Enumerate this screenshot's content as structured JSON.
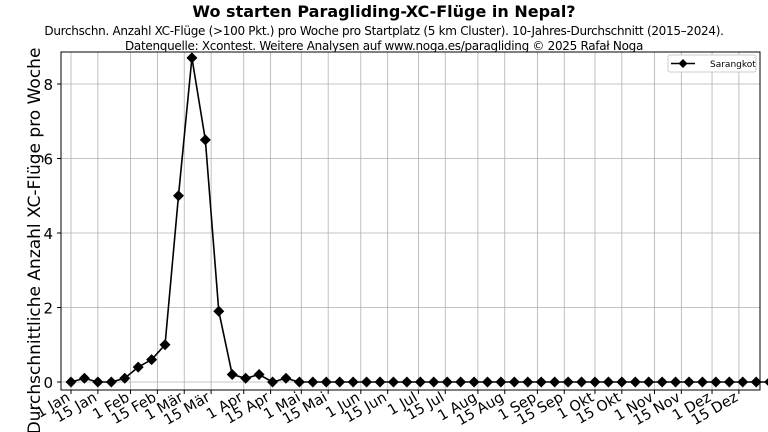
{
  "chart_data": {
    "type": "line",
    "title": "Wo starten Paragliding-XC-Flüge in Nepal?",
    "subtitle_line1": "Durchschn. Anzahl XC-Flüge (>100 Pkt.) pro Woche pro Startplatz (5 km Cluster). 10-Jahres-Durchschnitt (2015–2024).",
    "subtitle_line2": "Datenquelle: Xcontest. Weitere Analysen auf www.noga.es/paragliding © 2025 Rafał Noga",
    "xlabel": "",
    "ylabel": "Durchschnittliche Anzahl XC-Flüge pro Woche",
    "ylim": [
      0,
      8.9
    ],
    "yticks": [
      0,
      2,
      4,
      6,
      8
    ],
    "xtick_labels": [
      "1 Jan",
      "15 Jan",
      "1 Feb",
      "15 Feb",
      "1 Mär",
      "15 Mär",
      "1 Apr",
      "15 Apr",
      "1 Mai",
      "15 Mai",
      "1 Jun",
      "15 Jun",
      "1 Jul",
      "15 Jul",
      "1 Aug",
      "15 Aug",
      "1 Sep",
      "15 Sep",
      "1 Okt",
      "15 Okt",
      "1 Nov",
      "15 Nov",
      "1 Dez",
      "15 Dez"
    ],
    "xtick_days": [
      0,
      14,
      31,
      45,
      59,
      73,
      90,
      104,
      120,
      134,
      151,
      165,
      181,
      195,
      212,
      226,
      243,
      257,
      273,
      287,
      304,
      318,
      334,
      348
    ],
    "grid": true,
    "legend_position": "upper right",
    "series": [
      {
        "name": "Sarangkot",
        "marker": "diamond",
        "color": "#000000",
        "x_week": [
          1,
          2,
          3,
          4,
          5,
          6,
          7,
          8,
          9,
          10,
          11,
          12,
          13,
          14,
          15,
          16,
          17,
          18,
          19,
          20,
          21,
          22,
          23,
          24,
          25,
          26,
          27,
          28,
          29,
          30,
          31,
          32,
          33,
          34,
          35,
          36,
          37,
          38,
          39,
          40,
          41,
          42,
          43,
          44,
          45,
          46,
          47,
          48,
          49,
          50,
          51,
          52,
          53
        ],
        "values": [
          0,
          0.1,
          0,
          0,
          0.1,
          0.4,
          0.6,
          1.0,
          5.0,
          8.7,
          6.5,
          1.9,
          0.2,
          0.1,
          0.2,
          0,
          0.1,
          0,
          0,
          0,
          0,
          0,
          0,
          0,
          0,
          0,
          0,
          0,
          0,
          0,
          0,
          0,
          0,
          0,
          0,
          0,
          0,
          0,
          0,
          0,
          0,
          0,
          0,
          0,
          0,
          0,
          0,
          0,
          0,
          0,
          0,
          0,
          0
        ]
      }
    ]
  }
}
